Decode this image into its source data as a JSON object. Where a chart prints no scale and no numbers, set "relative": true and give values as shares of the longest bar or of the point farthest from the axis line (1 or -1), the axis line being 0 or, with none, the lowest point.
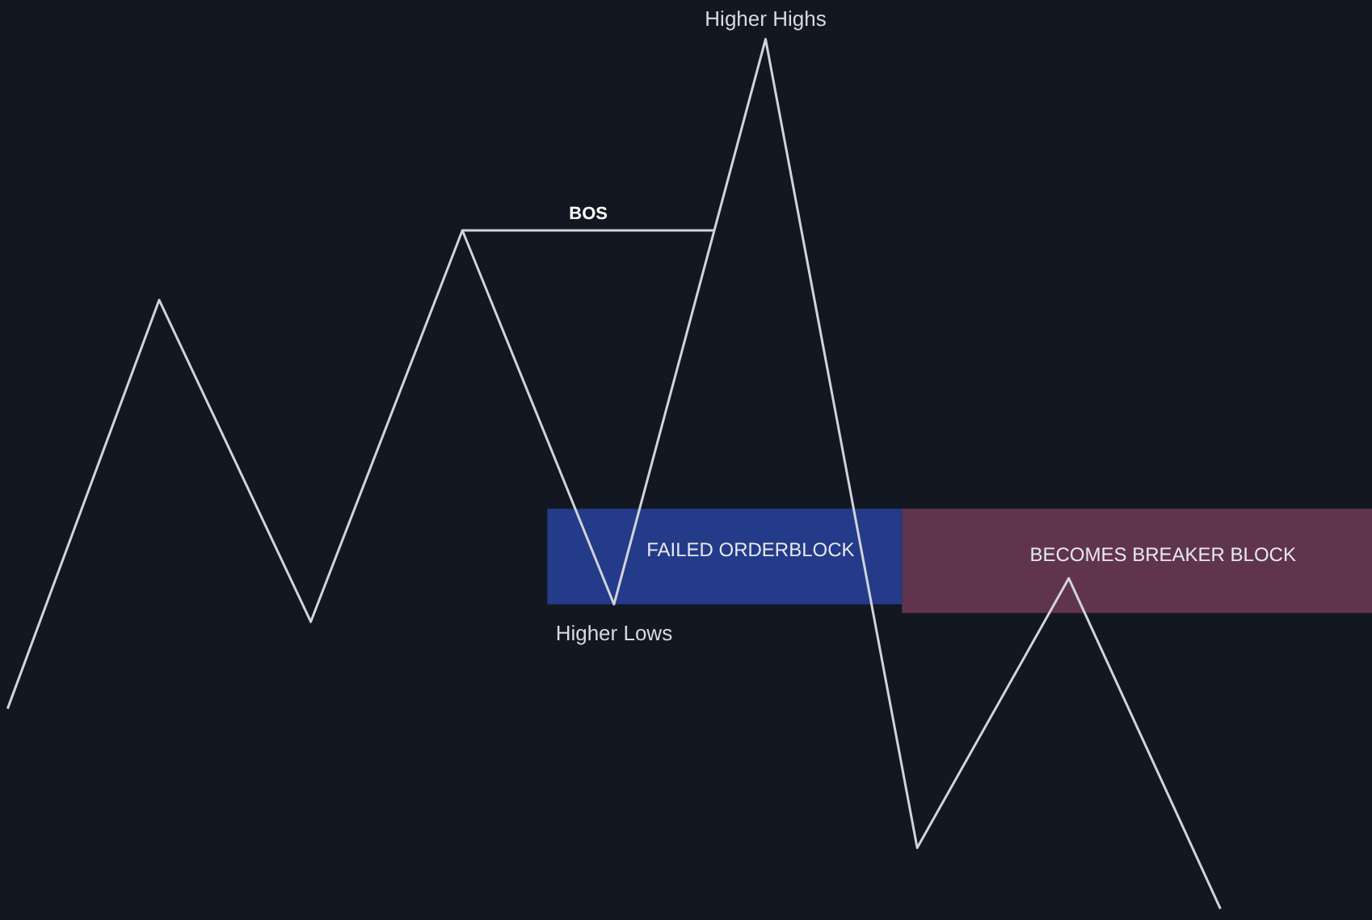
{
  "chart_data": {
    "type": "line",
    "relative": true,
    "categories": [
      null,
      null,
      null,
      null,
      null,
      null,
      null,
      null,
      null
    ],
    "values": [
      0.23,
      0.7,
      0.33,
      0.78,
      0.35,
      1,
      0.07,
      0.38,
      0
    ],
    "color": "#d1d4dc",
    "bands": [
      {
        "axis": "y",
        "from": 0.35,
        "to": 0.46,
        "label": "FAILED ORDERBLOCK",
        "color": "#27429a"
      },
      {
        "axis": "y",
        "from": 0.34,
        "to": 0.46,
        "label": "BECOMES BREAKER BLOCK",
        "color": "#6e3a57"
      }
    ],
    "ref_lines": [
      {
        "axis": "y",
        "value": 0.78,
        "label": "BOS"
      }
    ],
    "annotations": [
      {
        "text": "Higher Highs",
        "y": 1
      },
      {
        "text": "Higher Lows",
        "y": 0.35
      }
    ]
  }
}
